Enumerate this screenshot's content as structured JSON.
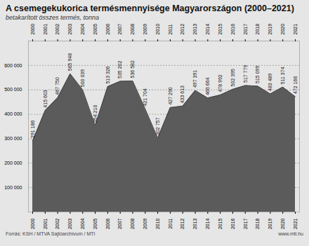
{
  "chart_data": {
    "type": "area",
    "title": "A csemegekukorica termésmennyisége Magyarországon (2000–2021)",
    "subtitle": "betakarított összes termés, tonna",
    "caption": "Forrás: KSH / MTVA Sajtóarchívum / MTI",
    "caption_right": "www.mti.hu",
    "x": [
      2000,
      2001,
      2002,
      2003,
      2004,
      2005,
      2006,
      2007,
      2008,
      2009,
      2010,
      2011,
      2012,
      2013,
      2014,
      2015,
      2016,
      2017,
      2018,
      2019,
      2020,
      2021
    ],
    "values": [
      291186,
      415603,
      467750,
      565948,
      500039,
      354210,
      513326,
      535202,
      536582,
      421704,
      302757,
      427290,
      433613,
      497391,
      466664,
      478992,
      502395,
      517779,
      515099,
      483489,
      511374,
      472166
    ],
    "value_labels": [
      "291 186",
      "415 603",
      "467 750",
      "565 948",
      "500 039",
      "354 210",
      "513 326",
      "535 202",
      "536 582",
      "421 704",
      "302 757",
      "427 290",
      "433 613",
      "497 391",
      "466 664",
      "478 992",
      "502 395",
      "517 779",
      "515 099",
      "483 489",
      "511 374",
      "472 166"
    ],
    "data_labels": true,
    "color": "#5b5b5b",
    "xlim": [
      2000,
      2021
    ],
    "xticks": [
      2000,
      2001,
      2002,
      2003,
      2004,
      2005,
      2006,
      2007,
      2008,
      2009,
      2010,
      2011,
      2012,
      2013,
      2014,
      2015,
      2016,
      2017,
      2018,
      2019,
      2020,
      2021
    ],
    "ylim": [
      0,
      700000
    ],
    "yticks": [
      {
        "value": 100000,
        "label": "100 000"
      },
      {
        "value": 200000,
        "label": "200 000"
      },
      {
        "value": 300000,
        "label": "300 000"
      },
      {
        "value": 400000,
        "label": "400 000"
      },
      {
        "value": 500000,
        "label": "500 000"
      },
      {
        "value": 600000,
        "label": "600 000"
      }
    ],
    "grid": true
  }
}
